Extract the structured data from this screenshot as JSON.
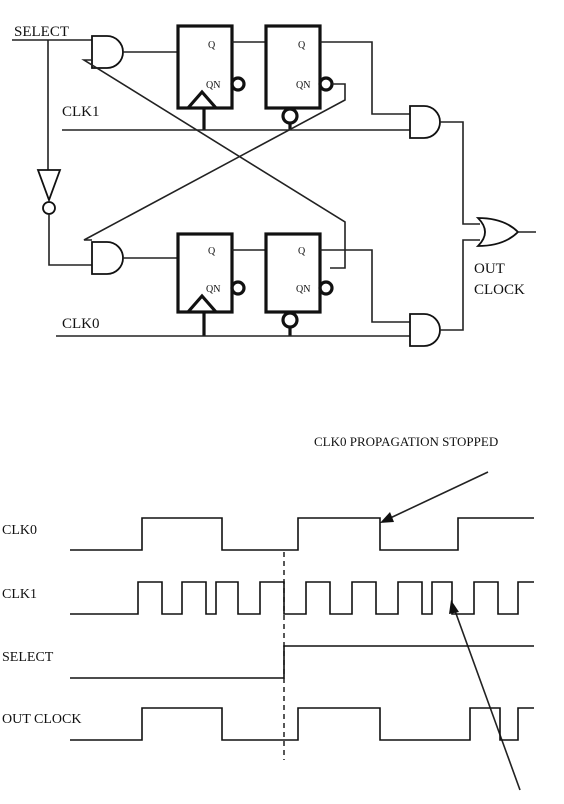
{
  "schematic": {
    "select_label": "SELECT",
    "clk1_label": "CLK1",
    "clk0_label": "CLK0",
    "out_label_line1": "OUT",
    "out_label_line2": "CLOCK",
    "q_label": "Q",
    "qn_label": "QN"
  },
  "timing": {
    "annotation": "CLK0 PROPAGATION STOPPED",
    "rows": [
      {
        "label": "CLK0"
      },
      {
        "label": "CLK1"
      },
      {
        "label": "SELECT"
      },
      {
        "label": "OUT CLOCK"
      }
    ]
  }
}
